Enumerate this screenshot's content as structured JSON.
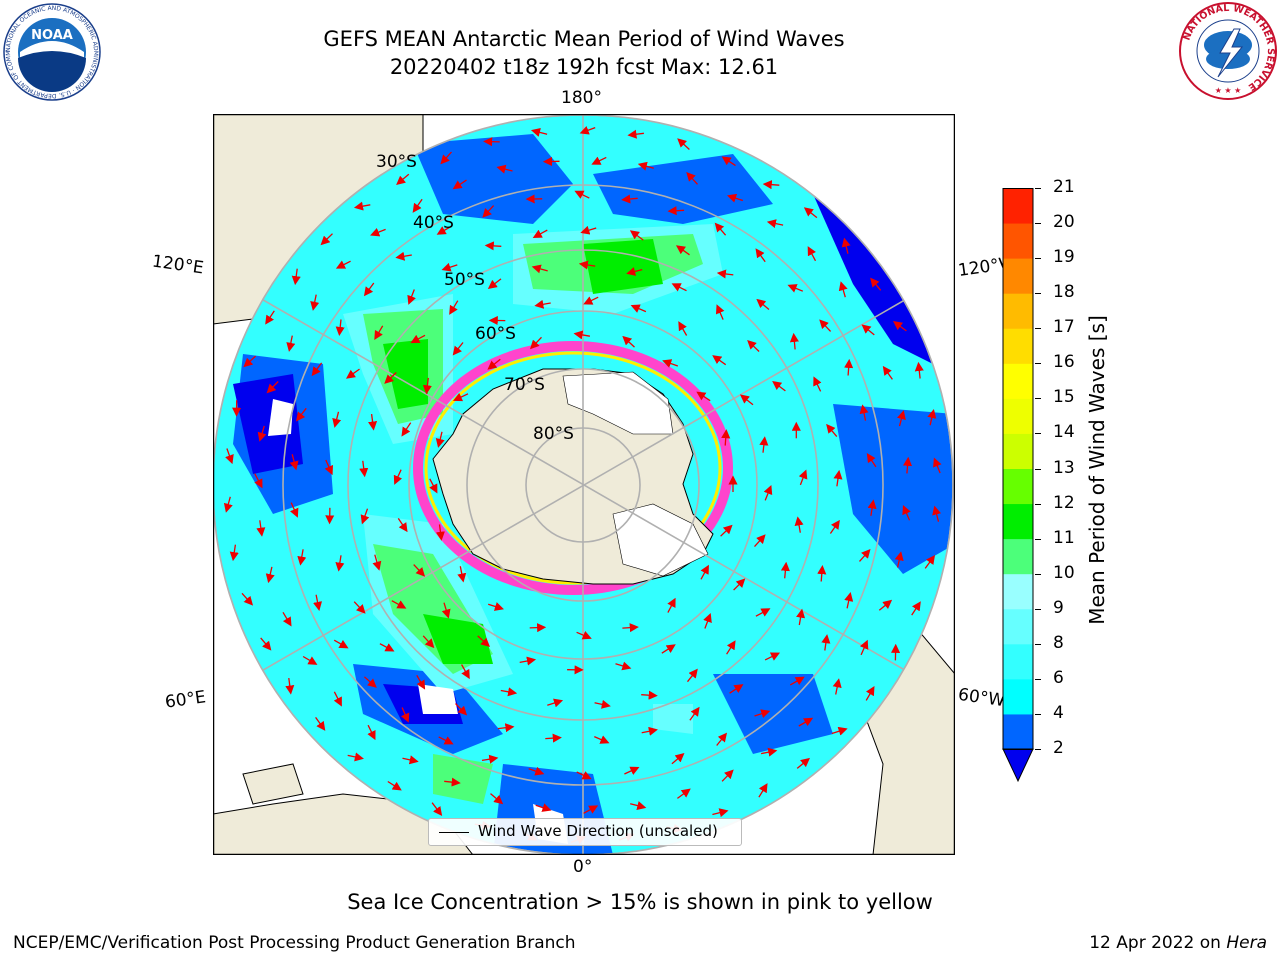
{
  "title": {
    "line1": "GEFS MEAN Antarctic Mean Period of Wind Waves",
    "line2": "20220402 t18z 192h fcst   Max: 12.61"
  },
  "map": {
    "projection": "south-polar-stereographic",
    "longitude_labels": {
      "top": "180°",
      "bottom": "0°",
      "upper_left": "120°E",
      "upper_right": "120°W",
      "lower_left": "60°E",
      "lower_right": "60°W"
    },
    "latitude_labels": [
      "30°S",
      "40°S",
      "50°S",
      "60°S",
      "70°S",
      "80°S"
    ],
    "colors": {
      "land": "#efebd9",
      "ocean_low": "#33ffff",
      "sea_ice": "#ffffff",
      "arrows": "#ee0000",
      "gridlines": "#b0b0b0"
    }
  },
  "legend": {
    "label": "Wind Wave Direction (unscaled)"
  },
  "colorbar": {
    "label": "Mean Period of Wind Waves [s]",
    "ticks": [
      "2",
      "4",
      "6",
      "8",
      "9",
      "10",
      "11",
      "12",
      "13",
      "14",
      "15",
      "16",
      "17",
      "18",
      "19",
      "20",
      "21"
    ],
    "colors": [
      "#0066ff",
      "#00ffff",
      "#33ffff",
      "#66ffff",
      "#99ffff",
      "#4cff7a",
      "#00ee00",
      "#66ff00",
      "#ccff00",
      "#eeff00",
      "#ffff00",
      "#ffdd00",
      "#ffbb00",
      "#ff8800",
      "#ff5500",
      "#ff2200"
    ],
    "under_color": "#0000ee"
  },
  "footer": {
    "sea_ice_note": "Sea Ice Concentration > 15% is shown in pink to yellow",
    "credit": "NCEP/EMC/Verification Post Processing Product Generation Branch",
    "date": "12 Apr 2022 on ",
    "machine": "Hera"
  },
  "logos": {
    "noaa": {
      "text": "NOAA",
      "ring_text": "NATIONAL OCEANIC AND ATMOSPHERIC ADMINISTRATION · U.S. DEPARTMENT OF COMMERCE"
    },
    "nws": {
      "ring_text": "NATIONAL WEATHER SERVICE"
    }
  }
}
